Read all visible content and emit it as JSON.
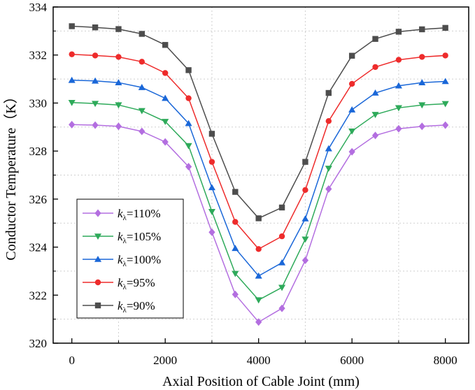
{
  "chart_data": {
    "type": "line",
    "title": "",
    "xlabel": "Axial Position of Cable Joint (mm)",
    "ylabel": "Conductor Temperature（K）",
    "xlim": [
      -400,
      8500
    ],
    "ylim": [
      320,
      334
    ],
    "xticks": [
      0,
      2000,
      4000,
      6000,
      8000
    ],
    "yticks": [
      320,
      322,
      324,
      326,
      328,
      330,
      332,
      334
    ],
    "xtick_labels": [
      "0",
      "2000",
      "4000",
      "6000",
      "8000"
    ],
    "ytick_labels": [
      "320",
      "322",
      "324",
      "326",
      "328",
      "330",
      "332",
      "334"
    ],
    "legend_position": "lower-left",
    "x": [
      0,
      500,
      1000,
      1500,
      2000,
      2500,
      3000,
      3500,
      4000,
      4500,
      5000,
      5500,
      6000,
      6500,
      7000,
      7500,
      8000
    ],
    "series": [
      {
        "name": "kλ=110%",
        "k": "k",
        "sub": "λ",
        "pct": "=110%",
        "color": "#b36ee0",
        "marker": "diamond",
        "values": [
          329.1,
          329.08,
          329.03,
          328.82,
          328.38,
          327.35,
          324.62,
          322.03,
          320.88,
          321.45,
          323.45,
          326.42,
          327.97,
          328.65,
          328.93,
          329.03,
          329.08
        ]
      },
      {
        "name": "kλ=105%",
        "k": "k",
        "sub": "λ",
        "pct": "=105%",
        "color": "#2eaa5a",
        "marker": "triangle-down",
        "values": [
          330.02,
          329.98,
          329.92,
          329.68,
          329.23,
          328.22,
          325.48,
          322.9,
          321.8,
          322.32,
          324.33,
          327.28,
          328.83,
          329.52,
          329.8,
          329.92,
          329.97
        ]
      },
      {
        "name": "kλ=100%",
        "k": "k",
        "sub": "λ",
        "pct": "=100%",
        "color": "#1a67d8",
        "marker": "triangle-up",
        "values": [
          330.95,
          330.92,
          330.85,
          330.65,
          330.2,
          329.15,
          326.48,
          323.95,
          322.8,
          323.35,
          325.18,
          328.1,
          329.72,
          330.42,
          330.72,
          330.85,
          330.9
        ]
      },
      {
        "name": "kλ=95%",
        "k": "k",
        "sub": "λ",
        "pct": "=95%",
        "color": "#ee2b2b",
        "marker": "circle",
        "values": [
          332.03,
          331.98,
          331.92,
          331.72,
          331.25,
          330.2,
          327.55,
          325.05,
          323.92,
          324.45,
          326.38,
          329.25,
          330.8,
          331.5,
          331.8,
          331.92,
          331.98
        ]
      },
      {
        "name": "kλ=90%",
        "k": "k",
        "sub": "λ",
        "pct": "=90%",
        "color": "#4d4d4d",
        "marker": "square",
        "values": [
          333.2,
          333.15,
          333.08,
          332.88,
          332.42,
          331.37,
          328.72,
          326.3,
          325.2,
          325.65,
          327.55,
          330.42,
          331.97,
          332.67,
          332.97,
          333.07,
          333.13
        ]
      }
    ]
  }
}
